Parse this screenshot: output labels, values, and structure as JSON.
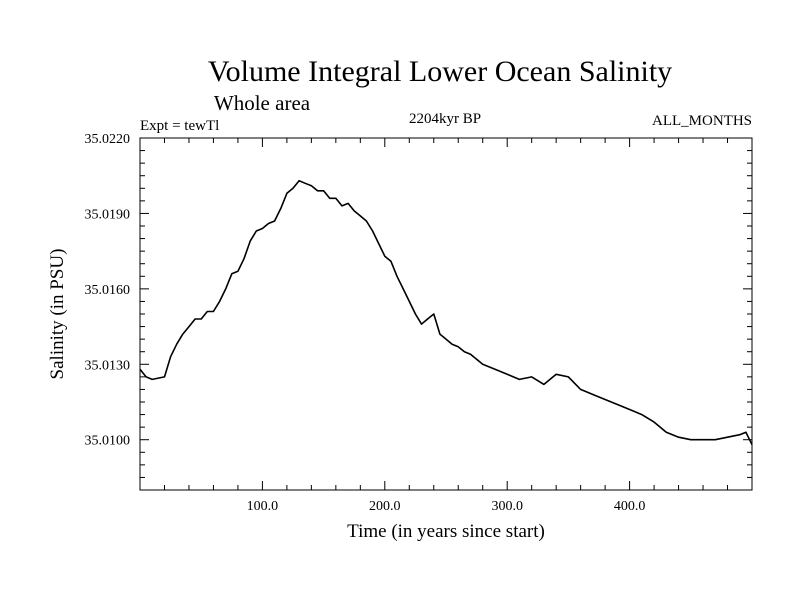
{
  "chart_data": {
    "type": "line",
    "title": "Volume Integral Lower Ocean Salinity",
    "subtitle": "Whole area",
    "annotation_left": "Expt = tewTl",
    "annotation_center": "2204kyr BP",
    "annotation_right": "ALL_MONTHS",
    "xlabel": "Time (in years since start)",
    "ylabel": "Salinity (in PSU)",
    "xlim": [
      0,
      500
    ],
    "ylim": [
      35.008,
      35.022
    ],
    "x_ticks": [
      100,
      200,
      300,
      400
    ],
    "x_tick_labels": [
      "100.0",
      "200.0",
      "300.0",
      "400.0"
    ],
    "y_ticks": [
      35.01,
      35.013,
      35.016,
      35.019,
      35.022
    ],
    "y_tick_labels": [
      "35.0100",
      "35.0130",
      "35.0160",
      "35.0190",
      "35.0220"
    ],
    "grid": false,
    "line_color": "#000000",
    "series": [
      {
        "name": "salinity",
        "x": [
          0,
          5,
          10,
          20,
          25,
          30,
          35,
          40,
          45,
          50,
          55,
          60,
          65,
          70,
          75,
          80,
          85,
          90,
          95,
          100,
          105,
          110,
          115,
          120,
          125,
          130,
          135,
          140,
          145,
          150,
          155,
          160,
          165,
          170,
          175,
          180,
          185,
          190,
          195,
          200,
          205,
          210,
          215,
          220,
          225,
          230,
          235,
          240,
          245,
          250,
          255,
          260,
          265,
          270,
          275,
          280,
          290,
          300,
          310,
          320,
          330,
          340,
          350,
          360,
          370,
          380,
          390,
          400,
          410,
          420,
          430,
          440,
          450,
          460,
          470,
          480,
          490,
          495,
          500
        ],
        "values": [
          35.0128,
          35.0125,
          35.0124,
          35.0125,
          35.0133,
          35.0138,
          35.0142,
          35.0145,
          35.0148,
          35.0148,
          35.0151,
          35.0151,
          35.0155,
          35.016,
          35.0166,
          35.0167,
          35.0172,
          35.0179,
          35.0183,
          35.0184,
          35.0186,
          35.0187,
          35.0192,
          35.0198,
          35.02,
          35.0203,
          35.0202,
          35.0201,
          35.0199,
          35.0199,
          35.0196,
          35.0196,
          35.0193,
          35.0194,
          35.0191,
          35.0189,
          35.0187,
          35.0183,
          35.0178,
          35.0173,
          35.0171,
          35.0165,
          35.016,
          35.0155,
          35.015,
          35.0146,
          35.0148,
          35.015,
          35.0142,
          35.014,
          35.0138,
          35.0137,
          35.0135,
          35.0134,
          35.0132,
          35.013,
          35.0128,
          35.0126,
          35.0124,
          35.0125,
          35.0122,
          35.0126,
          35.0125,
          35.012,
          35.0118,
          35.0116,
          35.0114,
          35.0112,
          35.011,
          35.0107,
          35.0103,
          35.0101,
          35.01,
          35.01,
          35.01,
          35.0101,
          35.0102,
          35.0103,
          35.0098
        ]
      }
    ]
  }
}
